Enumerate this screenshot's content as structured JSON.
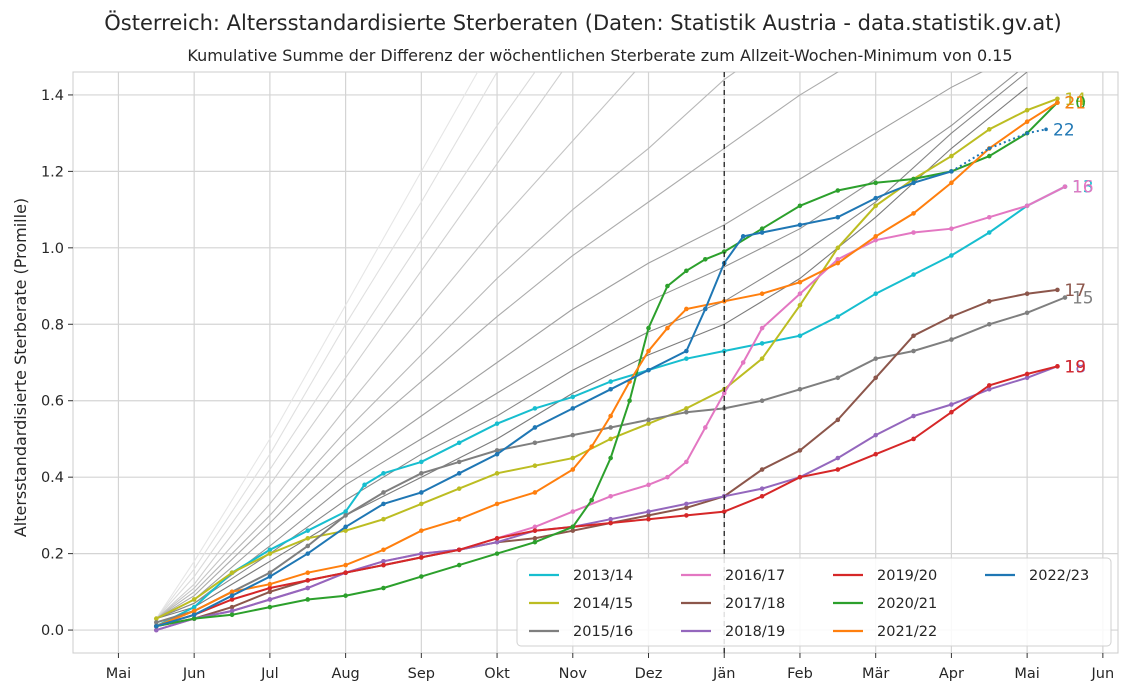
{
  "chart_data": {
    "type": "line",
    "title": "Österreich: Altersstandardisierte Sterberaten (Daten: Statistik Austria - data.statistik.gv.at)",
    "subtitle": "Kumulative Summe der Differenz der wöchentlichen Sterberate zum Allzeit-Wochen-Minimum von 0.15",
    "ylabel": "Altersstandardisierte Sterberate (Promille)",
    "xlabel": "",
    "ylim": [
      -0.06,
      1.46
    ],
    "yticks": [
      0.0,
      0.2,
      0.4,
      0.6,
      0.8,
      1.0,
      1.2,
      1.4
    ],
    "ytick_labels": [
      "0.0",
      "0.2",
      "0.4",
      "0.6",
      "0.8",
      "1.0",
      "1.2",
      "1.4"
    ],
    "xlim": [
      -0.6,
      13.2
    ],
    "x_unit": "months since Mai (0 = Mai, 12 = Mai of following year)",
    "xticks": [
      0,
      1,
      2,
      3,
      4,
      5,
      6,
      7,
      8,
      9,
      10,
      11,
      12,
      13
    ],
    "xtick_labels": [
      "Mai",
      "Jun",
      "Jul",
      "Aug",
      "Sep",
      "Okt",
      "Nov",
      "Dez",
      "Jän",
      "Feb",
      "Mär",
      "Apr",
      "Mai",
      "Jun"
    ],
    "vline_x": 8.0,
    "grid": true,
    "legend_position": "lower-right",
    "legend_columns": 4,
    "background_series": [
      {
        "color": "#e6e6e6",
        "x": [
          0.5,
          1,
          2,
          3,
          4,
          5
        ],
        "y": [
          0.03,
          0.18,
          0.5,
          0.85,
          1.2,
          1.55
        ]
      },
      {
        "color": "#e0e0e0",
        "x": [
          0.5,
          1,
          2,
          3,
          4,
          5
        ],
        "y": [
          0.03,
          0.16,
          0.46,
          0.8,
          1.12,
          1.46
        ]
      },
      {
        "color": "#dadada",
        "x": [
          0.5,
          1,
          2,
          3,
          4,
          5,
          6
        ],
        "y": [
          0.03,
          0.14,
          0.42,
          0.72,
          1.02,
          1.32,
          1.6
        ]
      },
      {
        "color": "#d0d0d0",
        "x": [
          0.5,
          1,
          2,
          3,
          4,
          5,
          6
        ],
        "y": [
          0.03,
          0.12,
          0.38,
          0.66,
          0.94,
          1.22,
          1.5
        ]
      },
      {
        "color": "#c4c4c4",
        "x": [
          0.5,
          1,
          2,
          3,
          4,
          5,
          6,
          7
        ],
        "y": [
          0.03,
          0.11,
          0.33,
          0.58,
          0.82,
          1.06,
          1.28,
          1.5
        ]
      },
      {
        "color": "#b8b8b8",
        "x": [
          0.5,
          1,
          2,
          3,
          4,
          5,
          6,
          7,
          8,
          9
        ],
        "y": [
          0.03,
          0.1,
          0.3,
          0.52,
          0.72,
          0.92,
          1.1,
          1.26,
          1.44,
          1.58
        ]
      },
      {
        "color": "#acacac",
        "x": [
          0.5,
          1,
          2,
          3,
          4,
          5,
          6,
          7,
          8,
          9,
          10
        ],
        "y": [
          0.03,
          0.09,
          0.28,
          0.48,
          0.65,
          0.82,
          0.98,
          1.12,
          1.26,
          1.4,
          1.52
        ]
      },
      {
        "color": "#a0a0a0",
        "x": [
          0.5,
          1,
          2,
          3,
          4,
          5,
          6,
          7,
          8,
          9,
          10,
          11,
          12
        ],
        "y": [
          0.03,
          0.08,
          0.25,
          0.42,
          0.56,
          0.7,
          0.84,
          0.96,
          1.06,
          1.18,
          1.3,
          1.42,
          1.52
        ]
      },
      {
        "color": "#949494",
        "x": [
          0.5,
          1,
          2,
          3,
          4,
          5,
          6,
          7,
          8,
          9,
          10,
          11,
          12
        ],
        "y": [
          0.03,
          0.07,
          0.22,
          0.38,
          0.5,
          0.62,
          0.74,
          0.86,
          0.95,
          1.05,
          1.18,
          1.32,
          1.48
        ]
      },
      {
        "color": "#888888",
        "x": [
          0.5,
          1,
          2,
          3,
          4,
          5,
          6,
          7,
          8,
          9,
          10,
          11,
          12
        ],
        "y": [
          0.03,
          0.07,
          0.2,
          0.34,
          0.46,
          0.56,
          0.68,
          0.78,
          0.86,
          0.98,
          1.12,
          1.3,
          1.46
        ]
      },
      {
        "color": "#7c7c7c",
        "x": [
          0.5,
          1,
          2,
          3,
          4,
          5,
          6,
          7,
          8,
          9,
          10,
          11,
          12
        ],
        "y": [
          0.03,
          0.06,
          0.18,
          0.3,
          0.4,
          0.5,
          0.62,
          0.72,
          0.8,
          0.92,
          1.08,
          1.26,
          1.42
        ]
      }
    ],
    "series": [
      {
        "name": "2013/14",
        "end_label": "13",
        "color": "#17becf",
        "x": [
          0.5,
          1,
          1.5,
          2,
          2.5,
          3,
          3.25,
          3.5,
          4,
          4.5,
          5,
          5.5,
          6,
          6.5,
          7,
          7.5,
          8,
          8.5,
          9,
          9.5,
          10,
          10.5,
          11,
          11.5,
          12,
          12.5
        ],
        "y": [
          0.01,
          0.06,
          0.15,
          0.21,
          0.26,
          0.31,
          0.38,
          0.41,
          0.44,
          0.49,
          0.54,
          0.58,
          0.61,
          0.65,
          0.68,
          0.71,
          0.73,
          0.75,
          0.77,
          0.82,
          0.88,
          0.93,
          0.98,
          1.04,
          1.11,
          1.16
        ]
      },
      {
        "name": "2014/15",
        "end_label": "14",
        "color": "#bcbd22",
        "x": [
          0.5,
          1,
          1.5,
          2,
          2.5,
          3,
          3.5,
          4,
          4.5,
          5,
          5.5,
          6,
          6.5,
          7,
          7.5,
          8,
          8.5,
          9,
          9.5,
          10,
          10.5,
          11,
          11.5,
          12,
          12.4
        ],
        "y": [
          0.03,
          0.08,
          0.15,
          0.2,
          0.24,
          0.26,
          0.29,
          0.33,
          0.37,
          0.41,
          0.43,
          0.45,
          0.5,
          0.54,
          0.58,
          0.63,
          0.71,
          0.85,
          1.0,
          1.11,
          1.18,
          1.24,
          1.31,
          1.36,
          1.39
        ]
      },
      {
        "name": "2015/16",
        "end_label": "15",
        "color": "#7f7f7f",
        "x": [
          0.5,
          1,
          1.5,
          2,
          2.5,
          3,
          3.5,
          4,
          4.5,
          5,
          5.5,
          6,
          6.5,
          7,
          7.5,
          8,
          8.5,
          9,
          9.5,
          10,
          10.5,
          11,
          11.5,
          12,
          12.5
        ],
        "y": [
          0.02,
          0.05,
          0.1,
          0.15,
          0.22,
          0.3,
          0.36,
          0.41,
          0.44,
          0.47,
          0.49,
          0.51,
          0.53,
          0.55,
          0.57,
          0.58,
          0.6,
          0.63,
          0.66,
          0.71,
          0.73,
          0.76,
          0.8,
          0.83,
          0.87
        ]
      },
      {
        "name": "2016/17",
        "end_label": "16",
        "color": "#e377c2",
        "x": [
          0.5,
          1,
          1.5,
          2,
          2.5,
          3,
          3.5,
          4,
          4.5,
          5,
          5.5,
          6,
          6.5,
          7,
          7.25,
          7.5,
          7.75,
          8,
          8.25,
          8.5,
          9,
          9.5,
          10,
          10.5,
          11,
          11.5,
          12,
          12.5
        ],
        "y": [
          0.0,
          0.03,
          0.05,
          0.08,
          0.11,
          0.15,
          0.18,
          0.2,
          0.21,
          0.24,
          0.27,
          0.31,
          0.35,
          0.38,
          0.4,
          0.44,
          0.53,
          0.62,
          0.7,
          0.79,
          0.88,
          0.97,
          1.02,
          1.04,
          1.05,
          1.08,
          1.11,
          1.16
        ]
      },
      {
        "name": "2017/18",
        "end_label": "17",
        "color": "#8c564b",
        "x": [
          0.5,
          1,
          1.5,
          2,
          2.5,
          3,
          3.5,
          4,
          4.5,
          5,
          5.5,
          6,
          6.5,
          7,
          7.5,
          8,
          8.5,
          9,
          9.5,
          10,
          10.5,
          11,
          11.5,
          12,
          12.4
        ],
        "y": [
          0.01,
          0.03,
          0.06,
          0.1,
          0.13,
          0.15,
          0.17,
          0.19,
          0.21,
          0.23,
          0.24,
          0.26,
          0.28,
          0.3,
          0.32,
          0.35,
          0.42,
          0.47,
          0.55,
          0.66,
          0.77,
          0.82,
          0.86,
          0.88,
          0.89
        ]
      },
      {
        "name": "2018/19",
        "end_label": "18",
        "color": "#9467bd",
        "x": [
          0.5,
          1,
          1.5,
          2,
          2.5,
          3,
          3.5,
          4,
          4.5,
          5,
          5.5,
          6,
          6.5,
          7,
          7.5,
          8,
          8.5,
          9,
          9.5,
          10,
          10.5,
          11,
          11.5,
          12,
          12.4
        ],
        "y": [
          0.0,
          0.03,
          0.05,
          0.08,
          0.11,
          0.15,
          0.18,
          0.2,
          0.21,
          0.23,
          0.26,
          0.27,
          0.29,
          0.31,
          0.33,
          0.35,
          0.37,
          0.4,
          0.45,
          0.51,
          0.56,
          0.59,
          0.63,
          0.66,
          0.69
        ]
      },
      {
        "name": "2019/20",
        "end_label": "19",
        "color": "#d62728",
        "x": [
          0.5,
          1,
          1.5,
          2,
          2.5,
          3,
          3.5,
          4,
          4.5,
          5,
          5.5,
          6,
          6.5,
          7,
          7.5,
          8,
          8.5,
          9,
          9.5,
          10,
          10.5,
          11,
          11.5,
          12,
          12.4
        ],
        "y": [
          0.01,
          0.04,
          0.08,
          0.11,
          0.13,
          0.15,
          0.17,
          0.19,
          0.21,
          0.24,
          0.26,
          0.27,
          0.28,
          0.29,
          0.3,
          0.31,
          0.35,
          0.4,
          0.42,
          0.46,
          0.5,
          0.57,
          0.64,
          0.67,
          0.69
        ]
      },
      {
        "name": "2020/21",
        "end_label": "20",
        "color": "#2ca02c",
        "x": [
          0.5,
          1,
          1.5,
          2,
          2.5,
          3,
          3.5,
          4,
          4.5,
          5,
          5.5,
          6,
          6.25,
          6.5,
          6.75,
          7,
          7.25,
          7.5,
          7.75,
          8,
          8.5,
          9,
          9.5,
          10,
          10.5,
          11,
          11.5,
          12,
          12.4
        ],
        "y": [
          0.01,
          0.03,
          0.04,
          0.06,
          0.08,
          0.09,
          0.11,
          0.14,
          0.17,
          0.2,
          0.23,
          0.27,
          0.34,
          0.45,
          0.6,
          0.79,
          0.9,
          0.94,
          0.97,
          0.99,
          1.05,
          1.11,
          1.15,
          1.17,
          1.18,
          1.2,
          1.24,
          1.3,
          1.38
        ]
      },
      {
        "name": "2021/22",
        "end_label": "21",
        "color": "#ff7f0e",
        "x": [
          0.5,
          1,
          1.5,
          2,
          2.5,
          3,
          3.5,
          4,
          4.5,
          5,
          5.5,
          6,
          6.25,
          6.5,
          6.75,
          7,
          7.25,
          7.5,
          8,
          8.5,
          9,
          9.5,
          10,
          10.5,
          11,
          11.5,
          12,
          12.4
        ],
        "y": [
          0.01,
          0.05,
          0.1,
          0.12,
          0.15,
          0.17,
          0.21,
          0.26,
          0.29,
          0.33,
          0.36,
          0.42,
          0.48,
          0.56,
          0.65,
          0.73,
          0.79,
          0.84,
          0.86,
          0.88,
          0.91,
          0.96,
          1.03,
          1.09,
          1.17,
          1.26,
          1.33,
          1.38
        ]
      },
      {
        "name": "2022/23",
        "end_label": "22",
        "color": "#1f77b4",
        "x": [
          0.5,
          1,
          1.5,
          2,
          2.5,
          3,
          3.5,
          4,
          4.5,
          5,
          5.5,
          6,
          6.5,
          7,
          7.5,
          7.75,
          8,
          8.25,
          8.5,
          9,
          9.5,
          10,
          10.5,
          11
        ],
        "y": [
          0.01,
          0.04,
          0.09,
          0.14,
          0.2,
          0.27,
          0.33,
          0.36,
          0.41,
          0.46,
          0.53,
          0.58,
          0.63,
          0.68,
          0.73,
          0.84,
          0.96,
          1.03,
          1.04,
          1.06,
          1.08,
          1.13,
          1.17,
          1.2
        ],
        "projection_x": [
          11,
          11.5,
          12,
          12.25
        ],
        "projection_y": [
          1.2,
          1.26,
          1.3,
          1.31
        ]
      }
    ]
  }
}
